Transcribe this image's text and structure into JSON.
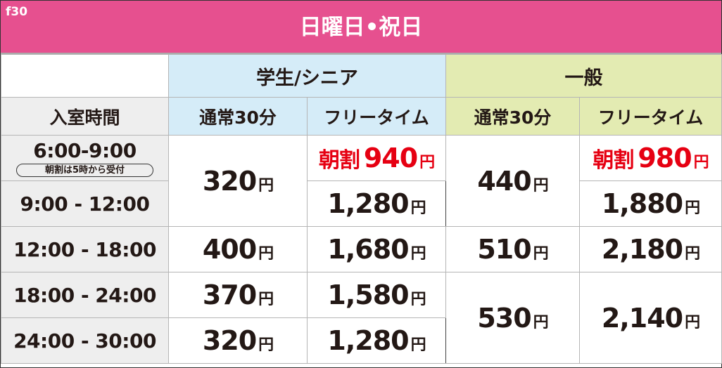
{
  "header": {
    "code": "f30",
    "title": "日曜日•祝日"
  },
  "colors": {
    "title_bg": "#e6508f",
    "student_bg": "#d5ecf8",
    "general_bg": "#e3ebb2",
    "time_bg": "#eeeeee",
    "discount_text": "#e60012"
  },
  "groups": {
    "student": "学生/シニア",
    "general": "一般"
  },
  "columns": {
    "time": "入室時間",
    "regular": "通常30分",
    "free": "フリータイム"
  },
  "yen": "円",
  "discount_label": "朝割",
  "rows": [
    {
      "time": "6:00-9:00",
      "note": "朝割は5時から受付",
      "student_regular": "320",
      "student_free": "940",
      "general_regular": "440",
      "general_free": "980"
    },
    {
      "time": "9:00 - 12:00",
      "student_free": "1,280",
      "general_free": "1,880"
    },
    {
      "time": "12:00 - 18:00",
      "student_regular": "400",
      "student_free": "1,680",
      "general_regular": "510",
      "general_free": "2,180"
    },
    {
      "time": "18:00 - 24:00",
      "student_regular": "370",
      "student_free": "1,580",
      "general_regular": "530",
      "general_free": "2,140"
    },
    {
      "time": "24:00 - 30:00",
      "student_regular": "320",
      "student_free": "1,280"
    }
  ]
}
